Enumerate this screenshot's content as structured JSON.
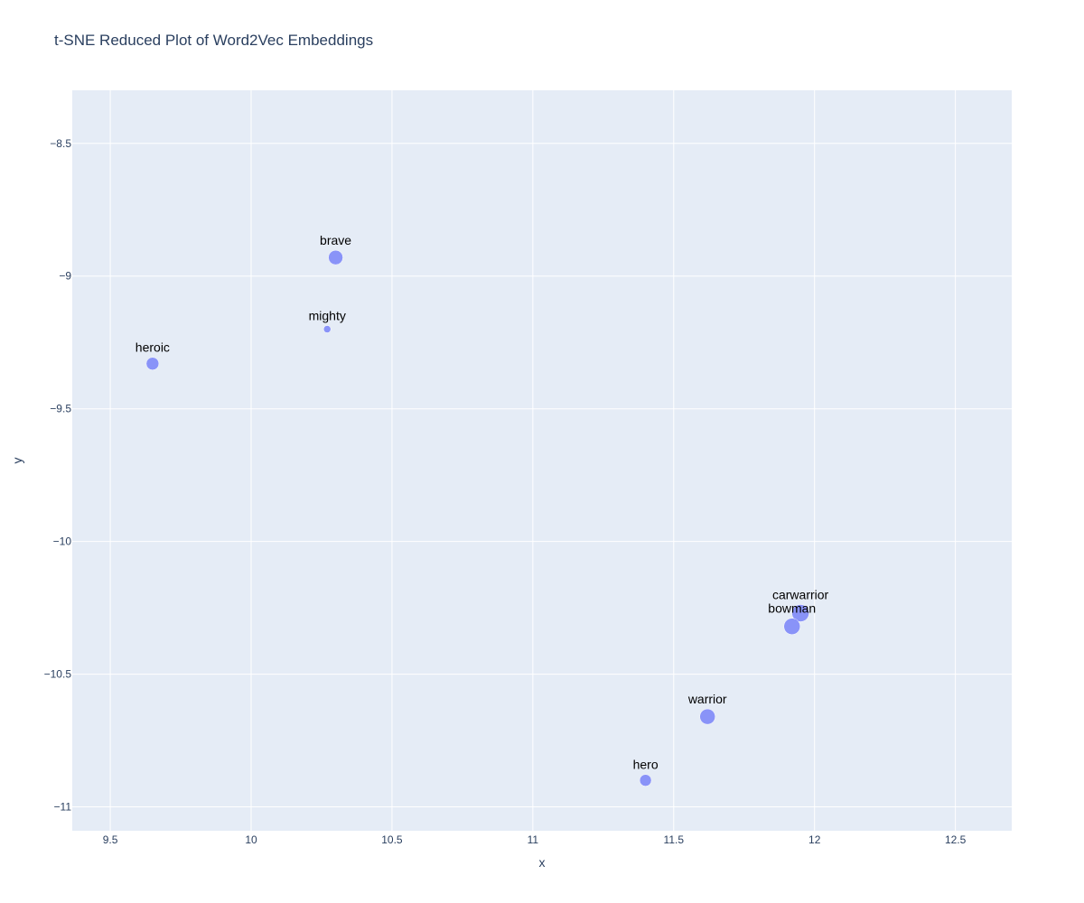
{
  "chart_data": {
    "type": "scatter",
    "title": "t-SNE Reduced Plot of Word2Vec Embeddings",
    "xlabel": "x",
    "ylabel": "y",
    "xlim": [
      9.365,
      12.7
    ],
    "ylim": [
      -11.09,
      -8.3
    ],
    "xticks": [
      9.5,
      10,
      10.5,
      11,
      11.5,
      12,
      12.5
    ],
    "xtick_labels": [
      "9.5",
      "10",
      "10.5",
      "11",
      "11.5",
      "12",
      "12.5"
    ],
    "yticks": [
      -8.5,
      -9,
      -9.5,
      -10,
      -10.5,
      -11
    ],
    "ytick_labels": [
      "−8.5",
      "−9",
      "−9.5",
      "−10",
      "−10.5",
      "−11"
    ],
    "grid": true,
    "marker_color": "#636efa",
    "plot_background": "#e5ecf6",
    "points": [
      {
        "label": "brave",
        "x": 10.3,
        "y": -8.93,
        "size": 16
      },
      {
        "label": "mighty",
        "x": 10.27,
        "y": -9.2,
        "size": 8
      },
      {
        "label": "heroic",
        "x": 9.65,
        "y": -9.33,
        "size": 14
      },
      {
        "label": "carwarrior",
        "x": 11.95,
        "y": -10.27,
        "size": 19
      },
      {
        "label": "bowman",
        "x": 11.92,
        "y": -10.32,
        "size": 18
      },
      {
        "label": "warrior",
        "x": 11.62,
        "y": -10.66,
        "size": 17
      },
      {
        "label": "hero",
        "x": 11.4,
        "y": -10.9,
        "size": 13
      }
    ]
  }
}
